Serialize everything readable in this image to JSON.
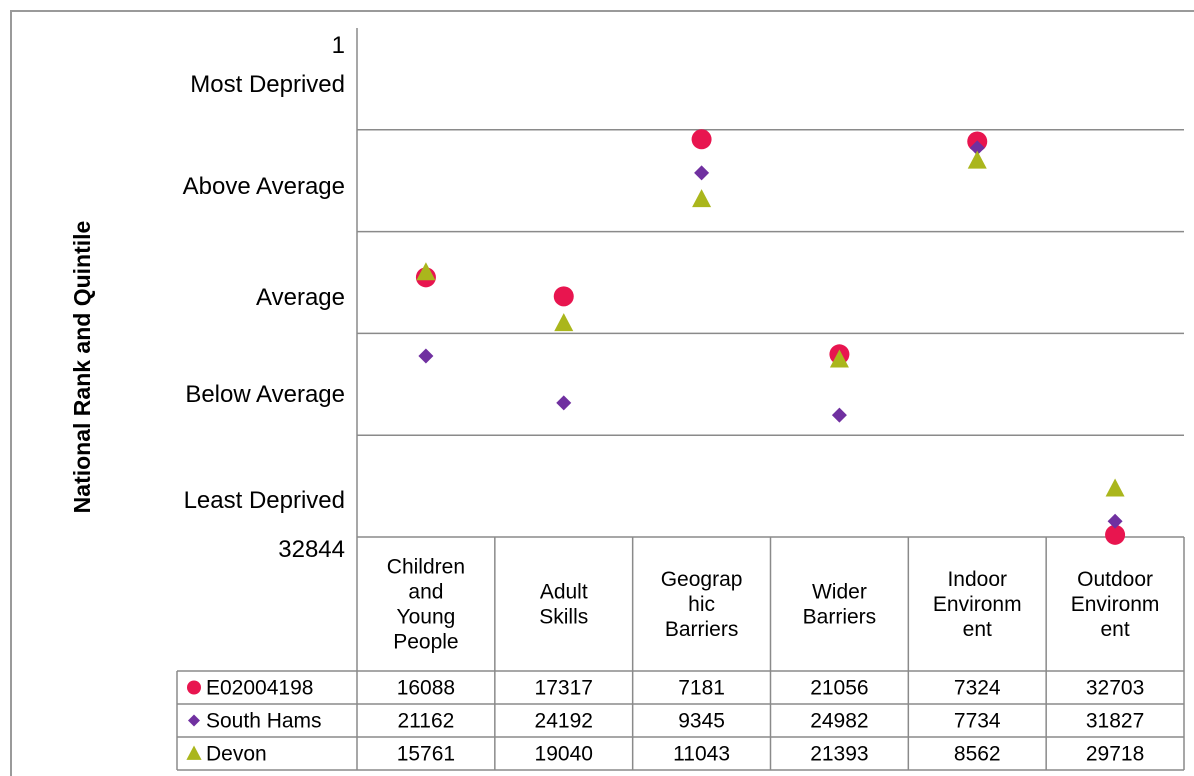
{
  "chart_data": {
    "type": "scatter",
    "ylabel": "National Rank and Quintile",
    "y_top_label": "1",
    "y_bottom_label": "32844",
    "ylim": [
      1,
      32844
    ],
    "y_inverted": true,
    "quintile_labels": [
      "Most Deprived",
      "Above Average",
      "Average",
      "Below Average",
      "Least Deprived"
    ],
    "categories": [
      [
        "Children",
        "and",
        "Young",
        "People"
      ],
      [
        "Adult",
        "Skills"
      ],
      [
        "Geograp",
        "hic",
        "Barriers"
      ],
      [
        "Wider",
        "Barriers"
      ],
      [
        "Indoor",
        "Environm",
        "ent"
      ],
      [
        "Outdoor",
        "Environm",
        "ent"
      ]
    ],
    "series": [
      {
        "name": "E02004198",
        "marker": "circle",
        "color": "#e8154f",
        "values": [
          16088,
          17317,
          7181,
          21056,
          7324,
          32703
        ]
      },
      {
        "name": "South Hams",
        "marker": "diamond",
        "color": "#7030a0",
        "values": [
          21162,
          24192,
          9345,
          24982,
          7734,
          31827
        ]
      },
      {
        "name": "Devon",
        "marker": "triangle",
        "color": "#aab61c",
        "values": [
          15761,
          19040,
          11043,
          21393,
          8562,
          29718
        ]
      }
    ],
    "grid": true,
    "legend": "table-below"
  }
}
